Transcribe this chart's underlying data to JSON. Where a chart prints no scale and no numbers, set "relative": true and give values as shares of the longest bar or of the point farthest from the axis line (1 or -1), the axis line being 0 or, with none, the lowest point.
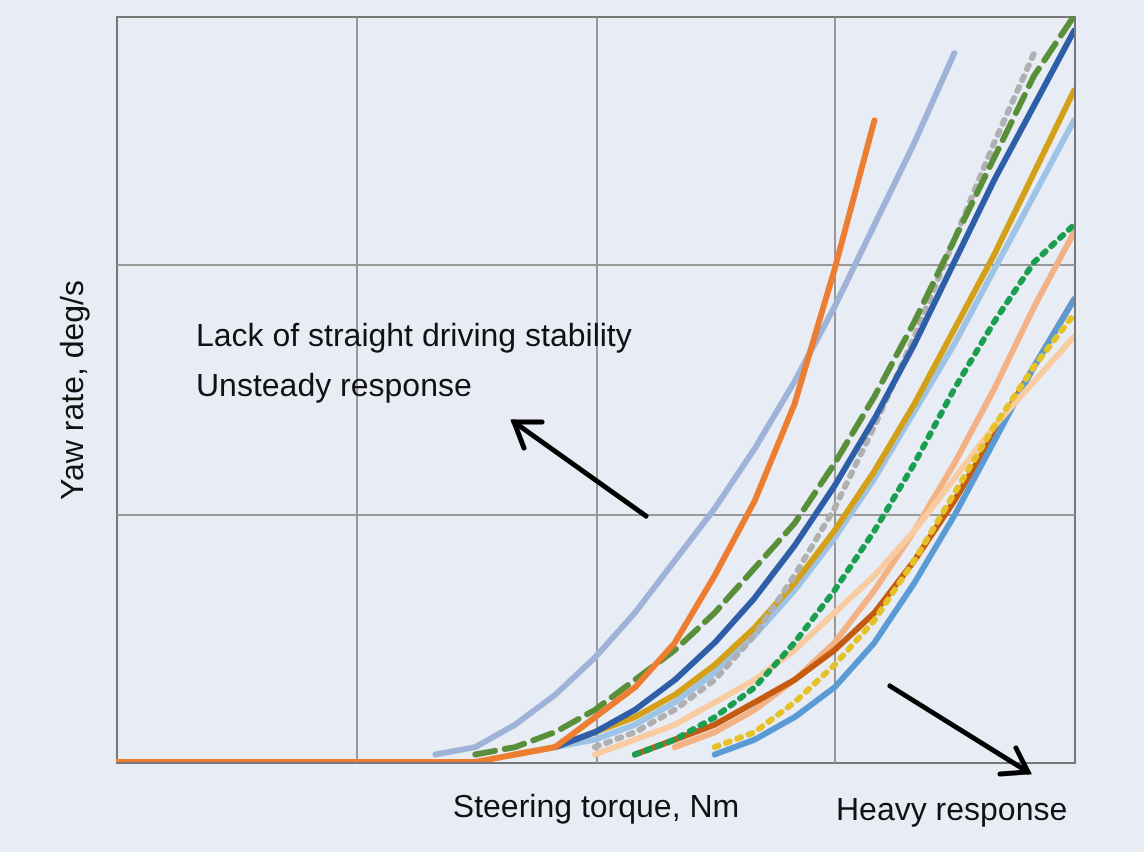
{
  "chart_data": {
    "type": "line",
    "relative": true,
    "grid": true,
    "xlabel": "Steering torque, Nm",
    "ylabel": "Yaw rate, deg/s",
    "annotations": [
      "Lack of straight driving stability\nUnsteady response",
      "Heavy response"
    ],
    "categories": [
      null,
      null,
      null,
      null,
      null,
      null,
      null,
      null,
      null,
      null,
      null,
      null,
      null,
      null,
      null,
      null,
      null,
      null,
      null,
      null,
      null,
      null,
      null,
      null,
      null
    ],
    "series": [
      {
        "color": "#f4b183",
        "values": [
          null,
          null,
          null,
          null,
          null,
          null,
          null,
          null,
          null,
          null,
          null,
          null,
          null,
          null,
          0.02,
          0.04,
          0.07,
          0.11,
          0.16,
          0.23,
          0.31,
          0.4,
          0.5,
          0.61,
          0.71
        ]
      },
      {
        "color": "#c55a11",
        "values": [
          null,
          null,
          null,
          null,
          null,
          null,
          null,
          null,
          null,
          null,
          null,
          null,
          null,
          0.01,
          0.03,
          0.05,
          0.08,
          0.11,
          0.15,
          0.2,
          0.27,
          0.35,
          0.44,
          0.53,
          0.62
        ]
      },
      {
        "color": "#5b9bd5",
        "values": [
          null,
          null,
          null,
          null,
          null,
          null,
          null,
          null,
          null,
          null,
          null,
          null,
          null,
          null,
          null,
          0.01,
          0.03,
          0.06,
          0.1,
          0.16,
          0.24,
          0.33,
          0.43,
          0.53,
          0.62
        ]
      },
      {
        "color": "#f8cba0",
        "values": [
          null,
          null,
          null,
          null,
          null,
          null,
          null,
          null,
          null,
          null,
          null,
          null,
          0.01,
          0.03,
          0.05,
          0.08,
          0.11,
          0.15,
          0.2,
          0.25,
          0.31,
          0.38,
          0.45,
          0.51,
          0.57
        ]
      },
      {
        "color": "#e6c229",
        "line_style": "dotted",
        "values": [
          null,
          null,
          null,
          null,
          null,
          null,
          null,
          null,
          null,
          null,
          null,
          null,
          null,
          null,
          null,
          0.02,
          0.04,
          0.08,
          0.13,
          0.19,
          0.27,
          0.36,
          0.45,
          0.53,
          0.6
        ]
      },
      {
        "color": "#1a9e50",
        "line_style": "dotted",
        "values": [
          null,
          null,
          null,
          null,
          null,
          null,
          null,
          null,
          null,
          null,
          null,
          null,
          null,
          0.01,
          0.03,
          0.06,
          0.1,
          0.16,
          0.23,
          0.31,
          0.4,
          0.5,
          0.59,
          0.67,
          0.72
        ]
      },
      {
        "color": "#9dc3e6",
        "values": [
          null,
          null,
          null,
          null,
          null,
          null,
          null,
          null,
          null,
          null,
          null,
          0.02,
          0.03,
          0.05,
          0.08,
          0.12,
          0.17,
          0.23,
          0.3,
          0.38,
          0.47,
          0.56,
          0.66,
          0.76,
          0.86
        ]
      },
      {
        "color": "#d4a017",
        "values": [
          null,
          null,
          null,
          null,
          null,
          null,
          null,
          null,
          null,
          null,
          0.01,
          0.02,
          0.04,
          0.06,
          0.09,
          0.13,
          0.18,
          0.24,
          0.31,
          0.39,
          0.48,
          0.58,
          0.68,
          0.79,
          0.9
        ]
      },
      {
        "color": "#b0b0b0",
        "line_style": "dotted",
        "values": [
          null,
          null,
          null,
          null,
          null,
          null,
          null,
          null,
          null,
          null,
          null,
          null,
          0.02,
          0.04,
          0.07,
          0.11,
          0.17,
          0.25,
          0.34,
          0.45,
          0.57,
          0.7,
          0.83,
          0.95,
          null
        ]
      },
      {
        "color": "#2e5ea8",
        "values": [
          null,
          null,
          null,
          null,
          null,
          null,
          null,
          null,
          null,
          null,
          null,
          0.02,
          0.04,
          0.07,
          0.11,
          0.16,
          0.22,
          0.29,
          0.37,
          0.46,
          0.56,
          0.67,
          0.78,
          0.88,
          0.98
        ]
      },
      {
        "color": "#5a8f3a",
        "line_style": "dashed",
        "values": [
          null,
          null,
          null,
          null,
          null,
          null,
          null,
          null,
          null,
          0.01,
          0.02,
          0.04,
          0.07,
          0.11,
          0.15,
          0.2,
          0.26,
          0.32,
          0.4,
          0.49,
          0.59,
          0.7,
          0.81,
          0.92,
          1
        ]
      },
      {
        "color": "#9fb3d9",
        "values": [
          null,
          null,
          null,
          null,
          null,
          null,
          null,
          null,
          0.01,
          0.02,
          0.05,
          0.09,
          0.14,
          0.2,
          0.27,
          0.34,
          0.42,
          0.51,
          0.61,
          0.72,
          0.83,
          0.95,
          null,
          null,
          null
        ]
      },
      {
        "color": "#ed7d31",
        "values": [
          0,
          0,
          0,
          0,
          0,
          0,
          0,
          0,
          0,
          0,
          0.01,
          0.02,
          0.06,
          0.1,
          0.16,
          0.25,
          0.35,
          0.48,
          0.66,
          0.86,
          null,
          null,
          null,
          null,
          null
        ]
      }
    ]
  }
}
